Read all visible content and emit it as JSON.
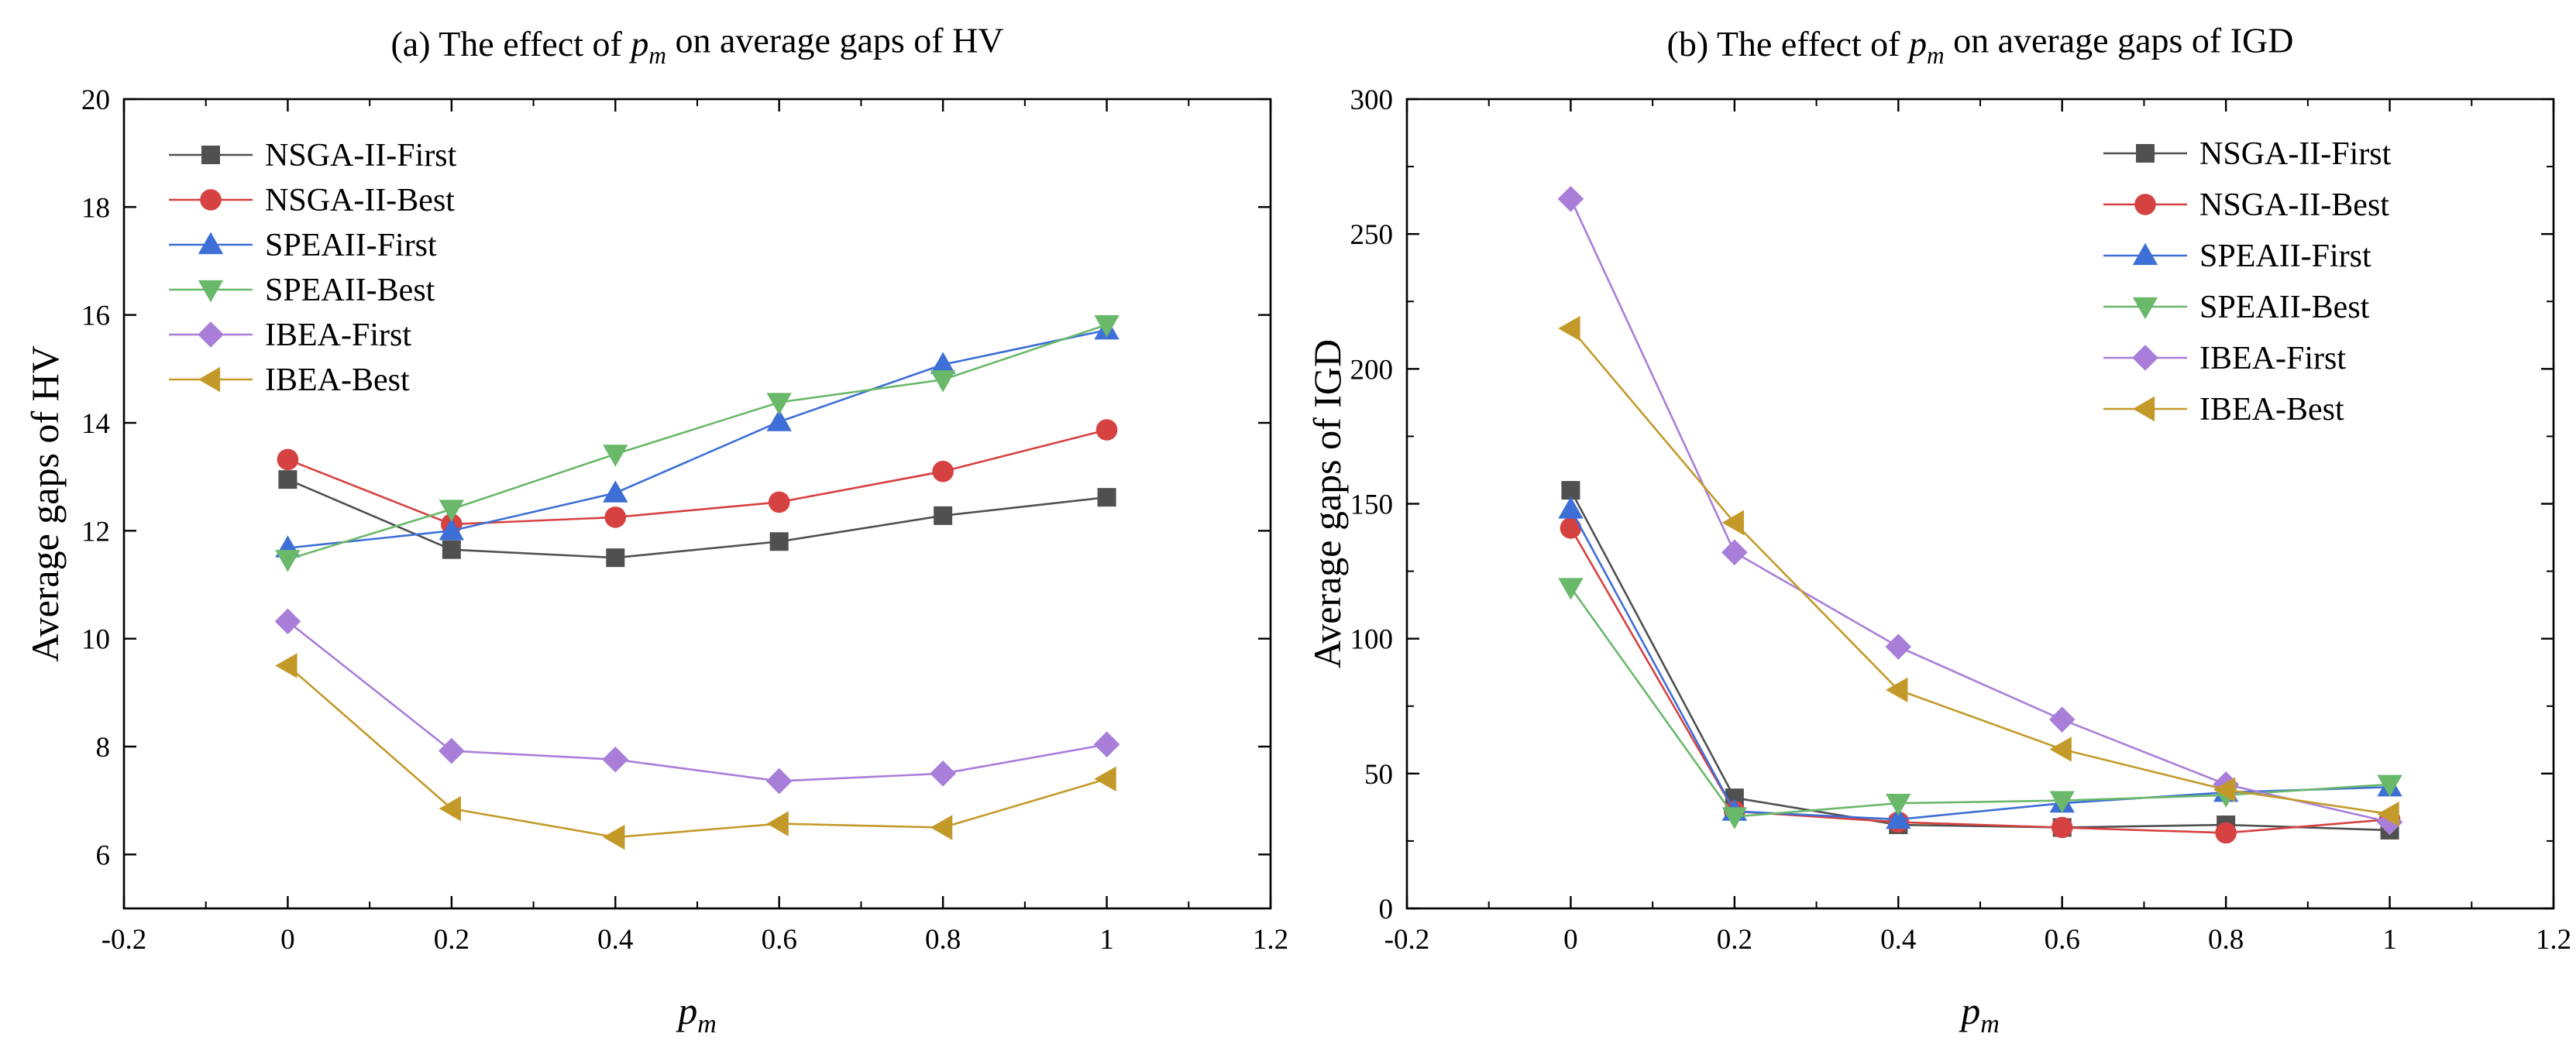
{
  "chart_data": [
    {
      "type": "line",
      "title_prefix": "(a) The effect of ",
      "title_var": "p",
      "title_sub": "m",
      "title_suffix": " on average gaps of HV",
      "xlabel_var": "p",
      "xlabel_sub": "m",
      "ylabel": "Average gaps of HV",
      "xlim": [
        -0.2,
        1.2
      ],
      "ylim": [
        5,
        20
      ],
      "xticks": [
        -0.2,
        0,
        0.2,
        0.4,
        0.6,
        0.8,
        1,
        1.2
      ],
      "xtick_labels": [
        "-0.2",
        "0",
        "0.2",
        "0.4",
        "0.6",
        "0.8",
        "1",
        "1.2"
      ],
      "yticks": [
        6,
        8,
        10,
        12,
        14,
        16,
        18,
        20
      ],
      "ytick_labels": [
        "6",
        "8",
        "10",
        "12",
        "14",
        "16",
        "18",
        "20"
      ],
      "legend_position": "top-left",
      "x": [
        0,
        0.2,
        0.4,
        0.6,
        0.8,
        1
      ],
      "series": [
        {
          "name": "NSGA-II-First",
          "color": "#505050",
          "marker": "square",
          "values": [
            12.95,
            11.65,
            11.5,
            11.8,
            12.28,
            12.62
          ]
        },
        {
          "name": "NSGA-II-Best",
          "color": "#d64141",
          "marker": "circle",
          "values": [
            13.32,
            12.12,
            12.25,
            12.53,
            13.1,
            13.87
          ]
        },
        {
          "name": "SPEAII-First",
          "color": "#3d6fd6",
          "marker": "triangle-up",
          "values": [
            11.68,
            12.0,
            12.7,
            14.02,
            15.08,
            15.72
          ]
        },
        {
          "name": "SPEAII-Best",
          "color": "#6ab86a",
          "marker": "triangle-down",
          "values": [
            11.47,
            12.4,
            13.42,
            14.38,
            14.8,
            15.82
          ]
        },
        {
          "name": "IBEA-First",
          "color": "#a97ed9",
          "marker": "diamond",
          "values": [
            10.32,
            7.92,
            7.76,
            7.36,
            7.5,
            8.04
          ]
        },
        {
          "name": "IBEA-Best",
          "color": "#c39a2a",
          "marker": "triangle-left",
          "values": [
            9.5,
            6.85,
            6.32,
            6.57,
            6.5,
            7.4
          ]
        }
      ]
    },
    {
      "type": "line",
      "title_prefix": "(b) The effect of ",
      "title_var": "p",
      "title_sub": "m",
      "title_suffix": " on average gaps of IGD",
      "xlabel_var": "p",
      "xlabel_sub": "m",
      "ylabel": "Average gaps of IGD",
      "xlim": [
        -0.2,
        1.2
      ],
      "ylim": [
        0,
        300
      ],
      "xticks": [
        -0.2,
        0,
        0.2,
        0.4,
        0.6,
        0.8,
        1,
        1.2
      ],
      "xtick_labels": [
        "-0.2",
        "0",
        "0.2",
        "0.4",
        "0.6",
        "0.8",
        "1",
        "1.2"
      ],
      "yticks": [
        0,
        50,
        100,
        150,
        200,
        250,
        300
      ],
      "ytick_labels": [
        "0",
        "50",
        "100",
        "150",
        "200",
        "250",
        "300"
      ],
      "legend_position": "top-right",
      "x": [
        0,
        0.2,
        0.4,
        0.6,
        0.8,
        1
      ],
      "series": [
        {
          "name": "NSGA-II-First",
          "color": "#505050",
          "marker": "square",
          "values": [
            155,
            41,
            31,
            30,
            31,
            29
          ]
        },
        {
          "name": "NSGA-II-Best",
          "color": "#d64141",
          "marker": "circle",
          "values": [
            141,
            36,
            32,
            30,
            28,
            33
          ]
        },
        {
          "name": "SPEAII-First",
          "color": "#3d6fd6",
          "marker": "triangle-up",
          "values": [
            148,
            36,
            33,
            39,
            43,
            45
          ]
        },
        {
          "name": "SPEAII-Best",
          "color": "#6ab86a",
          "marker": "triangle-down",
          "values": [
            119,
            34,
            39,
            40,
            42,
            46
          ]
        },
        {
          "name": "IBEA-First",
          "color": "#a97ed9",
          "marker": "diamond",
          "values": [
            263,
            132,
            97,
            70,
            46,
            32
          ]
        },
        {
          "name": "IBEA-Best",
          "color": "#c39a2a",
          "marker": "triangle-left",
          "values": [
            215,
            143,
            81,
            59,
            44,
            35
          ]
        }
      ]
    }
  ]
}
